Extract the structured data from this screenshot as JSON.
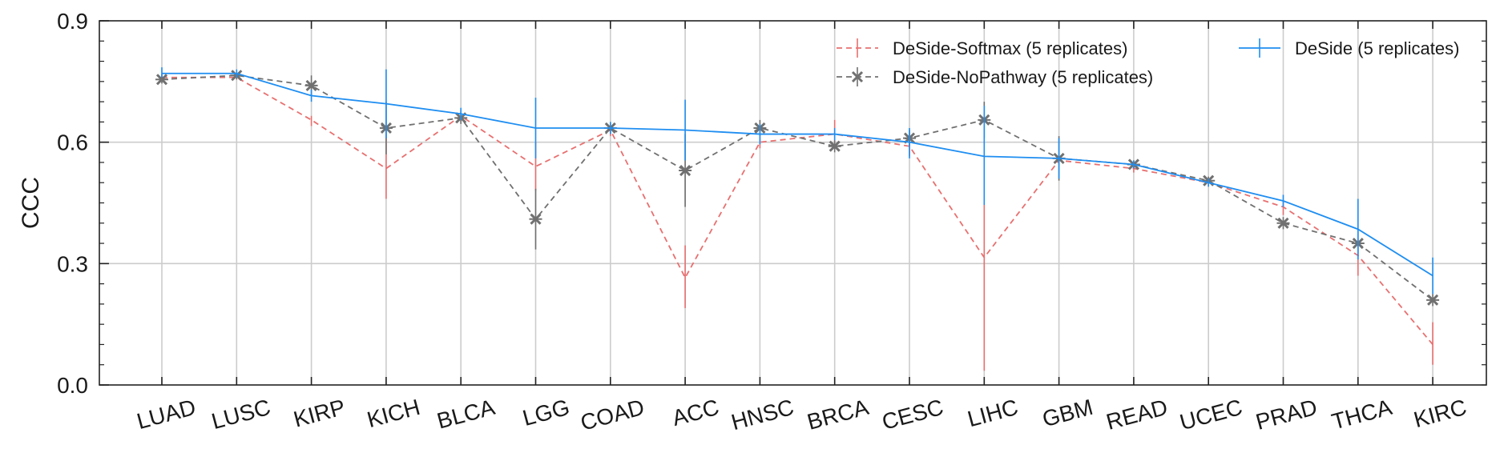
{
  "chart_data": {
    "type": "line",
    "title": "",
    "xlabel": "",
    "ylabel": "CCC",
    "ylim": [
      0.0,
      0.9
    ],
    "yticks": [
      0.0,
      0.3,
      0.6,
      0.9
    ],
    "ytick_labels": [
      "0.0",
      "0.3",
      "0.6",
      "0.9"
    ],
    "grid": true,
    "legend_position": "top-right",
    "categories": [
      "LUAD",
      "LUSC",
      "KIRP",
      "KICH",
      "BLCA",
      "LGG",
      "COAD",
      "ACC",
      "HNSC",
      "BRCA",
      "CESC",
      "LIHC",
      "GBM",
      "READ",
      "UCEC",
      "PRAD",
      "THCA",
      "KIRC"
    ],
    "series": [
      {
        "name": "DeSide-Softmax (5 replicates)",
        "color": "#e87070",
        "dash": "dashed",
        "marker": "none",
        "values": [
          0.76,
          0.76,
          0.655,
          0.535,
          0.665,
          0.54,
          0.63,
          0.265,
          0.6,
          0.62,
          0.59,
          0.315,
          0.555,
          0.535,
          0.5,
          0.44,
          0.32,
          0.1
        ],
        "err_low": [
          0.75,
          0.755,
          0.64,
          0.46,
          0.65,
          0.48,
          0.615,
          0.19,
          0.585,
          0.585,
          0.565,
          0.035,
          0.545,
          0.525,
          0.49,
          0.42,
          0.27,
          0.05
        ],
        "err_high": [
          0.77,
          0.77,
          0.665,
          0.62,
          0.68,
          0.6,
          0.645,
          0.345,
          0.615,
          0.655,
          0.61,
          0.445,
          0.565,
          0.545,
          0.51,
          0.455,
          0.36,
          0.155
        ]
      },
      {
        "name": "DeSide-NoPathway (5 replicates)",
        "color": "#707070",
        "dash": "dashed",
        "marker": "x",
        "values": [
          0.755,
          0.765,
          0.74,
          0.635,
          0.66,
          0.41,
          0.635,
          0.53,
          0.635,
          0.59,
          0.61,
          0.655,
          0.56,
          0.545,
          0.505,
          0.4,
          0.35,
          0.21
        ],
        "err_low": [
          0.745,
          0.755,
          0.715,
          0.57,
          0.645,
          0.335,
          0.62,
          0.44,
          0.615,
          0.575,
          0.59,
          0.61,
          0.505,
          0.535,
          0.495,
          0.385,
          0.32,
          0.195
        ],
        "err_high": [
          0.765,
          0.775,
          0.765,
          0.7,
          0.675,
          0.485,
          0.65,
          0.62,
          0.655,
          0.605,
          0.63,
          0.7,
          0.615,
          0.555,
          0.515,
          0.415,
          0.38,
          0.225
        ]
      },
      {
        "name": "DeSide (5 replicates)",
        "color": "#1f8ef1",
        "dash": "solid",
        "marker": "none",
        "values": [
          0.77,
          0.77,
          0.715,
          0.695,
          0.67,
          0.635,
          0.635,
          0.63,
          0.62,
          0.62,
          0.6,
          0.565,
          0.56,
          0.545,
          0.5,
          0.455,
          0.385,
          0.27
        ],
        "err_low": [
          0.76,
          0.76,
          0.7,
          0.61,
          0.655,
          0.56,
          0.62,
          0.555,
          0.595,
          0.605,
          0.56,
          0.445,
          0.51,
          0.535,
          0.49,
          0.44,
          0.31,
          0.225
        ],
        "err_high": [
          0.785,
          0.78,
          0.73,
          0.78,
          0.685,
          0.71,
          0.65,
          0.705,
          0.645,
          0.635,
          0.635,
          0.69,
          0.61,
          0.555,
          0.51,
          0.47,
          0.46,
          0.315
        ]
      }
    ]
  }
}
